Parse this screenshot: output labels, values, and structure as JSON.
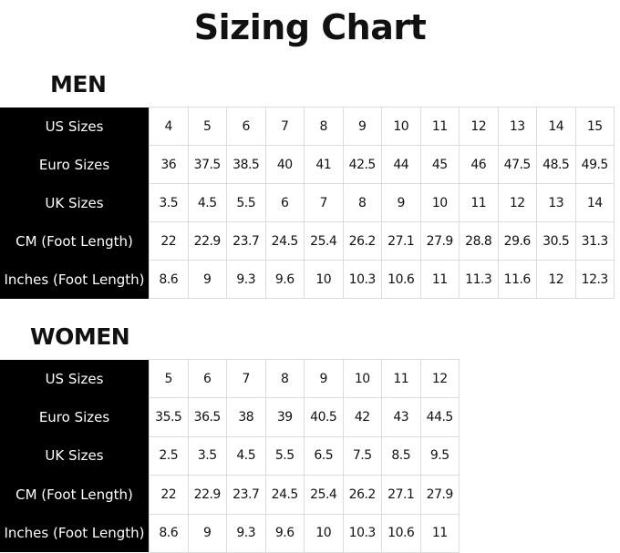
{
  "title": "Sizing Chart",
  "men": {
    "label": "MEN",
    "rows": [
      {
        "header": "US Sizes",
        "values": [
          "4",
          "5",
          "6",
          "7",
          "8",
          "9",
          "10",
          "11",
          "12",
          "13",
          "14",
          "15"
        ]
      },
      {
        "header": "Euro Sizes",
        "values": [
          "36",
          "37.5",
          "38.5",
          "40",
          "41",
          "42.5",
          "44",
          "45",
          "46",
          "47.5",
          "48.5",
          "49.5"
        ]
      },
      {
        "header": "UK Sizes",
        "values": [
          "3.5",
          "4.5",
          "5.5",
          "6",
          "7",
          "8",
          "9",
          "10",
          "11",
          "12",
          "13",
          "14"
        ]
      },
      {
        "header": "CM (Foot Length)",
        "values": [
          "22",
          "22.9",
          "23.7",
          "24.5",
          "25.4",
          "26.2",
          "27.1",
          "27.9",
          "28.8",
          "29.6",
          "30.5",
          "31.3"
        ]
      },
      {
        "header": "Inches (Foot Length)",
        "values": [
          "8.6",
          "9",
          "9.3",
          "9.6",
          "10",
          "10.3",
          "10.6",
          "11",
          "11.3",
          "11.6",
          "12",
          "12.3"
        ]
      }
    ]
  },
  "women": {
    "label": "WOMEN",
    "rows": [
      {
        "header": "US Sizes",
        "values": [
          "5",
          "6",
          "7",
          "8",
          "9",
          "10",
          "11",
          "12"
        ]
      },
      {
        "header": "Euro Sizes",
        "values": [
          "35.5",
          "36.5",
          "38",
          "39",
          "40.5",
          "42",
          "43",
          "44.5"
        ]
      },
      {
        "header": "UK Sizes",
        "values": [
          "2.5",
          "3.5",
          "4.5",
          "5.5",
          "6.5",
          "7.5",
          "8.5",
          "9.5"
        ]
      },
      {
        "header": "CM (Foot Length)",
        "values": [
          "22",
          "22.9",
          "23.7",
          "24.5",
          "25.4",
          "26.2",
          "27.1",
          "27.9"
        ]
      },
      {
        "header": "Inches (Foot Length)",
        "values": [
          "8.6",
          "9",
          "9.3",
          "9.6",
          "10",
          "10.3",
          "10.6",
          "11"
        ]
      }
    ]
  },
  "colors": {
    "header_bg": "#000000",
    "header_text": "#ffffff",
    "grid_line": "#dcdcdc"
  }
}
